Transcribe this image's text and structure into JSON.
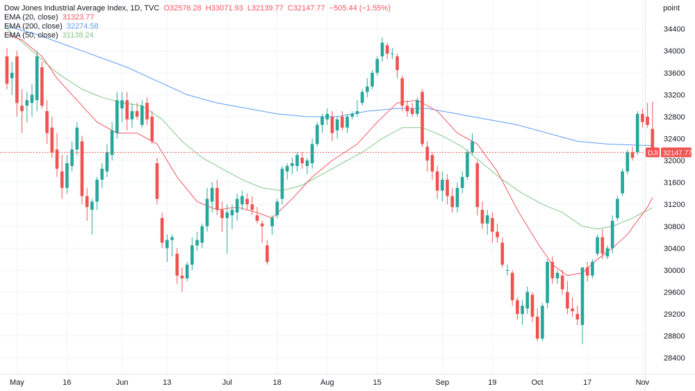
{
  "legend": {
    "title": "Dow Jones Industrial Average Index, 1D, TVC",
    "ohlc": {
      "o": "O32576.28",
      "h": "H33071.93",
      "l": "L32139.77",
      "c": "C32147.77",
      "chg": "−505.44 (−1.55%)"
    },
    "ema20": {
      "label": "EMA (20, close)",
      "value": "31323.77"
    },
    "ema200": {
      "label": "EMA (200, close)",
      "value": "32274.58"
    },
    "ema50": {
      "label": "EMA (50, close)",
      "value": "31138.24"
    }
  },
  "axis_unit": "point",
  "colors": {
    "up": "#26a69a",
    "down": "#ef5350",
    "ema20": "#f7525f",
    "ema200": "#5b9cf6",
    "ema50": "#81c784",
    "grid": "#f0f3fa",
    "text": "#131722"
  },
  "chart_data": {
    "type": "candlestick",
    "symbol": "DJI",
    "last_price": "32147.77",
    "ylim": [
      28200,
      34700
    ],
    "y_ticks": [
      28400,
      28800,
      29200,
      29600,
      30000,
      30400,
      30800,
      31200,
      31600,
      32000,
      32400,
      32800,
      33200,
      33600,
      34000,
      34400
    ],
    "x_ticks": [
      {
        "label": "May",
        "index": 2
      },
      {
        "label": "16",
        "index": 12
      },
      {
        "label": "Jun",
        "index": 23
      },
      {
        "label": "13",
        "index": 32
      },
      {
        "label": "Jul",
        "index": 44
      },
      {
        "label": "18",
        "index": 54
      },
      {
        "label": "Aug",
        "index": 64
      },
      {
        "label": "15",
        "index": 74
      },
      {
        "label": "Sep",
        "index": 87
      },
      {
        "label": "19",
        "index": 97
      },
      {
        "label": "Oct",
        "index": 106
      },
      {
        "label": "17",
        "index": 116
      },
      {
        "label": "Nov",
        "index": 127
      }
    ],
    "candles": [
      {
        "o": 33900,
        "h": 34050,
        "l": 33300,
        "c": 33400
      },
      {
        "o": 33500,
        "h": 33800,
        "l": 33200,
        "c": 33600
      },
      {
        "o": 33900,
        "h": 34000,
        "l": 32800,
        "c": 33050
      },
      {
        "o": 33000,
        "h": 33300,
        "l": 32500,
        "c": 32900
      },
      {
        "o": 33000,
        "h": 33250,
        "l": 32700,
        "c": 33100
      },
      {
        "o": 33050,
        "h": 33400,
        "l": 32800,
        "c": 33200
      },
      {
        "o": 33100,
        "h": 34000,
        "l": 32900,
        "c": 33900
      },
      {
        "o": 33700,
        "h": 33800,
        "l": 32950,
        "c": 33000
      },
      {
        "o": 32900,
        "h": 33100,
        "l": 32300,
        "c": 32500
      },
      {
        "o": 32600,
        "h": 32800,
        "l": 32050,
        "c": 32150
      },
      {
        "o": 32200,
        "h": 32500,
        "l": 31700,
        "c": 31850
      },
      {
        "o": 31800,
        "h": 32100,
        "l": 31300,
        "c": 31500
      },
      {
        "o": 31500,
        "h": 32100,
        "l": 31400,
        "c": 31950
      },
      {
        "o": 31900,
        "h": 32350,
        "l": 31800,
        "c": 32200
      },
      {
        "o": 32200,
        "h": 32700,
        "l": 32100,
        "c": 32600
      },
      {
        "o": 32350,
        "h": 32450,
        "l": 31200,
        "c": 31350
      },
      {
        "o": 31350,
        "h": 31500,
        "l": 30900,
        "c": 31150
      },
      {
        "o": 31100,
        "h": 31300,
        "l": 30650,
        "c": 31250
      },
      {
        "o": 31250,
        "h": 31700,
        "l": 31100,
        "c": 31650
      },
      {
        "o": 31650,
        "h": 31950,
        "l": 31500,
        "c": 31850
      },
      {
        "o": 31800,
        "h": 32300,
        "l": 31700,
        "c": 32150
      },
      {
        "o": 32100,
        "h": 32700,
        "l": 32000,
        "c": 32550
      },
      {
        "o": 32500,
        "h": 33250,
        "l": 32400,
        "c": 33100
      },
      {
        "o": 32950,
        "h": 33250,
        "l": 32700,
        "c": 33100
      },
      {
        "o": 33100,
        "h": 33250,
        "l": 32550,
        "c": 32750
      },
      {
        "o": 32750,
        "h": 33050,
        "l": 32600,
        "c": 32900
      },
      {
        "o": 32900,
        "h": 33050,
        "l": 32750,
        "c": 32800
      },
      {
        "o": 32650,
        "h": 33100,
        "l": 32600,
        "c": 33000
      },
      {
        "o": 33050,
        "h": 33150,
        "l": 32650,
        "c": 32750
      },
      {
        "o": 32800,
        "h": 32900,
        "l": 32300,
        "c": 32350
      },
      {
        "o": 31950,
        "h": 32050,
        "l": 31200,
        "c": 31300
      },
      {
        "o": 30950,
        "h": 31050,
        "l": 30400,
        "c": 30500
      },
      {
        "o": 30400,
        "h": 30650,
        "l": 30150,
        "c": 30550
      },
      {
        "o": 30550,
        "h": 30650,
        "l": 30250,
        "c": 30600
      },
      {
        "o": 30300,
        "h": 30400,
        "l": 29750,
        "c": 29900
      },
      {
        "o": 29900,
        "h": 30050,
        "l": 29600,
        "c": 29850
      },
      {
        "o": 29850,
        "h": 30150,
        "l": 29800,
        "c": 30100
      },
      {
        "o": 30100,
        "h": 30600,
        "l": 30000,
        "c": 30450
      },
      {
        "o": 30450,
        "h": 30700,
        "l": 30350,
        "c": 30550
      },
      {
        "o": 30500,
        "h": 30850,
        "l": 30400,
        "c": 30800
      },
      {
        "o": 30800,
        "h": 31500,
        "l": 30700,
        "c": 31300
      },
      {
        "o": 31250,
        "h": 31600,
        "l": 31050,
        "c": 31500
      },
      {
        "o": 31500,
        "h": 31650,
        "l": 31000,
        "c": 31100
      },
      {
        "o": 31100,
        "h": 31250,
        "l": 30700,
        "c": 30950
      },
      {
        "o": 30950,
        "h": 31200,
        "l": 30300,
        "c": 31050
      },
      {
        "o": 31000,
        "h": 31200,
        "l": 30750,
        "c": 31100
      },
      {
        "o": 31050,
        "h": 31400,
        "l": 30900,
        "c": 31300
      },
      {
        "o": 31200,
        "h": 31450,
        "l": 31100,
        "c": 31350
      },
      {
        "o": 31300,
        "h": 31400,
        "l": 31100,
        "c": 31200
      },
      {
        "o": 31200,
        "h": 31350,
        "l": 31000,
        "c": 31100
      },
      {
        "o": 31000,
        "h": 31150,
        "l": 30850,
        "c": 30900
      },
      {
        "o": 30850,
        "h": 30900,
        "l": 30500,
        "c": 30800
      },
      {
        "o": 30450,
        "h": 30550,
        "l": 30100,
        "c": 30150
      },
      {
        "o": 30800,
        "h": 31000,
        "l": 30650,
        "c": 30950
      },
      {
        "o": 31000,
        "h": 31300,
        "l": 30950,
        "c": 31250
      },
      {
        "o": 31300,
        "h": 31900,
        "l": 31200,
        "c": 31850
      },
      {
        "o": 31800,
        "h": 31950,
        "l": 31650,
        "c": 31900
      },
      {
        "o": 31900,
        "h": 32050,
        "l": 31750,
        "c": 31950
      },
      {
        "o": 31900,
        "h": 32150,
        "l": 31800,
        "c": 32100
      },
      {
        "o": 32050,
        "h": 32150,
        "l": 31850,
        "c": 31950
      },
      {
        "o": 31900,
        "h": 32050,
        "l": 31750,
        "c": 32000
      },
      {
        "o": 31950,
        "h": 32400,
        "l": 31850,
        "c": 32300
      },
      {
        "o": 32300,
        "h": 32700,
        "l": 32250,
        "c": 32650
      },
      {
        "o": 32650,
        "h": 32850,
        "l": 32500,
        "c": 32800
      },
      {
        "o": 32750,
        "h": 32950,
        "l": 32650,
        "c": 32850
      },
      {
        "o": 32800,
        "h": 32900,
        "l": 32350,
        "c": 32500
      },
      {
        "o": 32550,
        "h": 32800,
        "l": 32400,
        "c": 32750
      },
      {
        "o": 32800,
        "h": 32900,
        "l": 32550,
        "c": 32600
      },
      {
        "o": 32600,
        "h": 32850,
        "l": 32500,
        "c": 32800
      },
      {
        "o": 32800,
        "h": 32900,
        "l": 32750,
        "c": 32850
      },
      {
        "o": 32850,
        "h": 33100,
        "l": 32800,
        "c": 32900
      },
      {
        "o": 33050,
        "h": 33300,
        "l": 33000,
        "c": 33250
      },
      {
        "o": 33250,
        "h": 33500,
        "l": 33150,
        "c": 33350
      },
      {
        "o": 33350,
        "h": 33650,
        "l": 33300,
        "c": 33600
      },
      {
        "o": 33600,
        "h": 33900,
        "l": 33550,
        "c": 33850
      },
      {
        "o": 33900,
        "h": 34250,
        "l": 33800,
        "c": 34150
      },
      {
        "o": 34100,
        "h": 34150,
        "l": 33850,
        "c": 33950
      },
      {
        "o": 33950,
        "h": 34050,
        "l": 33850,
        "c": 33950
      },
      {
        "o": 33900,
        "h": 33950,
        "l": 33500,
        "c": 33650
      },
      {
        "o": 33500,
        "h": 33550,
        "l": 32900,
        "c": 33000
      },
      {
        "o": 33000,
        "h": 33100,
        "l": 32800,
        "c": 32900
      },
      {
        "o": 32950,
        "h": 33050,
        "l": 32800,
        "c": 32850
      },
      {
        "o": 32850,
        "h": 33150,
        "l": 32800,
        "c": 33100
      },
      {
        "o": 33250,
        "h": 33300,
        "l": 32250,
        "c": 32300
      },
      {
        "o": 32250,
        "h": 32350,
        "l": 31800,
        "c": 32000
      },
      {
        "o": 32100,
        "h": 32150,
        "l": 31650,
        "c": 31800
      },
      {
        "o": 31800,
        "h": 31900,
        "l": 31300,
        "c": 31450
      },
      {
        "o": 31450,
        "h": 31800,
        "l": 31250,
        "c": 31650
      },
      {
        "o": 31650,
        "h": 31750,
        "l": 31200,
        "c": 31350
      },
      {
        "o": 31350,
        "h": 31500,
        "l": 31050,
        "c": 31150
      },
      {
        "o": 31150,
        "h": 31600,
        "l": 31050,
        "c": 31500
      },
      {
        "o": 31500,
        "h": 31800,
        "l": 31400,
        "c": 31700
      },
      {
        "o": 31700,
        "h": 32200,
        "l": 31650,
        "c": 32150
      },
      {
        "o": 32150,
        "h": 32500,
        "l": 32100,
        "c": 32350
      },
      {
        "o": 31950,
        "h": 32000,
        "l": 31000,
        "c": 31150
      },
      {
        "o": 31100,
        "h": 31250,
        "l": 30750,
        "c": 30850
      },
      {
        "o": 30850,
        "h": 31100,
        "l": 30650,
        "c": 31000
      },
      {
        "o": 30950,
        "h": 31050,
        "l": 30500,
        "c": 30700
      },
      {
        "o": 30700,
        "h": 30850,
        "l": 30500,
        "c": 30600
      },
      {
        "o": 30500,
        "h": 30600,
        "l": 30050,
        "c": 30100
      },
      {
        "o": 30000,
        "h": 30100,
        "l": 29900,
        "c": 30000
      },
      {
        "o": 29950,
        "h": 30000,
        "l": 29350,
        "c": 29450
      },
      {
        "o": 29450,
        "h": 29500,
        "l": 29100,
        "c": 29200
      },
      {
        "o": 29200,
        "h": 29450,
        "l": 29000,
        "c": 29350
      },
      {
        "o": 29300,
        "h": 29700,
        "l": 29200,
        "c": 29600
      },
      {
        "o": 29550,
        "h": 29600,
        "l": 29050,
        "c": 29150
      },
      {
        "o": 29150,
        "h": 29300,
        "l": 28700,
        "c": 28750
      },
      {
        "o": 28750,
        "h": 29400,
        "l": 28700,
        "c": 29350
      },
      {
        "o": 29400,
        "h": 30200,
        "l": 29300,
        "c": 30150
      },
      {
        "o": 30150,
        "h": 30250,
        "l": 29750,
        "c": 29850
      },
      {
        "o": 29850,
        "h": 30000,
        "l": 29750,
        "c": 29950
      },
      {
        "o": 29900,
        "h": 30000,
        "l": 29550,
        "c": 29650
      },
      {
        "o": 29600,
        "h": 29800,
        "l": 29200,
        "c": 29300
      },
      {
        "o": 29300,
        "h": 29500,
        "l": 29150,
        "c": 29250
      },
      {
        "o": 29200,
        "h": 29350,
        "l": 29000,
        "c": 29100
      },
      {
        "o": 29000,
        "h": 30050,
        "l": 28650,
        "c": 30050
      },
      {
        "o": 30050,
        "h": 30150,
        "l": 29800,
        "c": 29900
      },
      {
        "o": 29900,
        "h": 30200,
        "l": 29850,
        "c": 30150
      },
      {
        "o": 30300,
        "h": 30650,
        "l": 30250,
        "c": 30600
      },
      {
        "o": 30600,
        "h": 30750,
        "l": 30200,
        "c": 30300
      },
      {
        "o": 30250,
        "h": 30450,
        "l": 30200,
        "c": 30400
      },
      {
        "o": 30400,
        "h": 31000,
        "l": 30300,
        "c": 30900
      },
      {
        "o": 30950,
        "h": 31350,
        "l": 30900,
        "c": 31300
      },
      {
        "o": 31400,
        "h": 31850,
        "l": 31350,
        "c": 31800
      },
      {
        "o": 31800,
        "h": 32200,
        "l": 31750,
        "c": 32150
      },
      {
        "o": 32150,
        "h": 32250,
        "l": 32000,
        "c": 32050
      },
      {
        "o": 32150,
        "h": 32900,
        "l": 32100,
        "c": 32850
      },
      {
        "o": 32850,
        "h": 32950,
        "l": 32600,
        "c": 32700
      },
      {
        "o": 32800,
        "h": 33050,
        "l": 32600,
        "c": 32650
      },
      {
        "o": 32576.28,
        "h": 33071.93,
        "l": 32139.77,
        "c": 32147.77
      }
    ],
    "ema20": [
      [
        0,
        34300
      ],
      [
        3,
        34200
      ],
      [
        7,
        33900
      ],
      [
        10,
        33500
      ],
      [
        14,
        33100
      ],
      [
        18,
        32700
      ],
      [
        22,
        32500
      ],
      [
        26,
        32500
      ],
      [
        30,
        32300
      ],
      [
        34,
        31700
      ],
      [
        38,
        31250
      ],
      [
        42,
        31100
      ],
      [
        46,
        31150
      ],
      [
        50,
        31050
      ],
      [
        53,
        30950
      ],
      [
        57,
        31300
      ],
      [
        61,
        31700
      ],
      [
        65,
        32000
      ],
      [
        70,
        32300
      ],
      [
        74,
        32700
      ],
      [
        78,
        33050
      ],
      [
        82,
        33100
      ],
      [
        86,
        32900
      ],
      [
        90,
        32500
      ],
      [
        94,
        32300
      ],
      [
        98,
        31800
      ],
      [
        102,
        31100
      ],
      [
        106,
        30500
      ],
      [
        109,
        30100
      ],
      [
        112,
        29900
      ],
      [
        115,
        29950
      ],
      [
        118,
        30200
      ],
      [
        121,
        30400
      ],
      [
        124,
        30650
      ],
      [
        128,
        31150
      ],
      [
        129,
        31323
      ]
    ],
    "ema200": [
      [
        0,
        34450
      ],
      [
        6,
        34300
      ],
      [
        12,
        34100
      ],
      [
        18,
        33900
      ],
      [
        24,
        33700
      ],
      [
        30,
        33450
      ],
      [
        36,
        33200
      ],
      [
        42,
        33050
      ],
      [
        48,
        32950
      ],
      [
        54,
        32850
      ],
      [
        60,
        32800
      ],
      [
        66,
        32800
      ],
      [
        72,
        32900
      ],
      [
        78,
        32950
      ],
      [
        84,
        32950
      ],
      [
        90,
        32850
      ],
      [
        96,
        32750
      ],
      [
        102,
        32650
      ],
      [
        108,
        32500
      ],
      [
        114,
        32350
      ],
      [
        120,
        32300
      ],
      [
        126,
        32280
      ],
      [
        129,
        32274
      ]
    ],
    "ema50": [
      [
        0,
        34400
      ],
      [
        5,
        34000
      ],
      [
        10,
        33600
      ],
      [
        15,
        33300
      ],
      [
        19,
        33150
      ],
      [
        23,
        33050
      ],
      [
        27,
        33000
      ],
      [
        31,
        32750
      ],
      [
        35,
        32350
      ],
      [
        39,
        32050
      ],
      [
        43,
        31850
      ],
      [
        47,
        31650
      ],
      [
        51,
        31500
      ],
      [
        55,
        31450
      ],
      [
        59,
        31550
      ],
      [
        63,
        31750
      ],
      [
        67,
        31950
      ],
      [
        71,
        32150
      ],
      [
        75,
        32400
      ],
      [
        79,
        32600
      ],
      [
        83,
        32600
      ],
      [
        87,
        32450
      ],
      [
        91,
        32250
      ],
      [
        95,
        31950
      ],
      [
        99,
        31650
      ],
      [
        103,
        31400
      ],
      [
        107,
        31200
      ],
      [
        111,
        31050
      ],
      [
        115,
        30800
      ],
      [
        118,
        30750
      ],
      [
        121,
        30800
      ],
      [
        125,
        30950
      ],
      [
        129,
        31138
      ]
    ]
  }
}
